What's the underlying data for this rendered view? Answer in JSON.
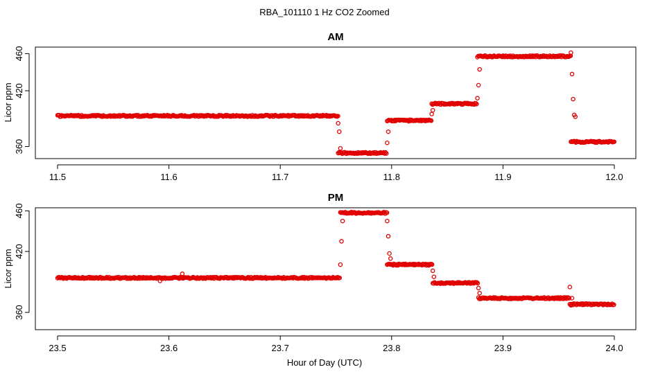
{
  "page": {
    "title": "RBA_101110  1 Hz CO2 Zoomed",
    "xlabel": "Hour of Day (UTC)",
    "ylabel": "Licor ppm"
  },
  "chart_data": [
    {
      "type": "scatter",
      "title": "AM",
      "xlabel": "Hour of Day (UTC)",
      "ylabel": "Licor ppm",
      "xlim": [
        11.5,
        12.0
      ],
      "ylim": [
        347,
        467
      ],
      "xticks": [
        "11.5",
        "11.6",
        "11.7",
        "11.8",
        "11.9",
        "12.0"
      ],
      "xtick_values": [
        11.5,
        11.6,
        11.7,
        11.8,
        11.9,
        12.0
      ],
      "yticks": [
        "360",
        "420",
        "460"
      ],
      "ytick_values": [
        360,
        420,
        460
      ],
      "grid": false,
      "color": "#e00000",
      "segments": [
        {
          "x": [
            11.5,
            11.752
          ],
          "y": 393
        },
        {
          "x": [
            11.752,
            11.796
          ],
          "y": 353
        },
        {
          "x": [
            11.796,
            11.836
          ],
          "y": 388
        },
        {
          "x": [
            11.836,
            11.877
          ],
          "y": 406
        },
        {
          "x": [
            11.877,
            11.961
          ],
          "y": 457
        },
        {
          "x": [
            11.961,
            12.0
          ],
          "y": 365
        }
      ],
      "transitions": [
        {
          "x": 11.752,
          "y": 385
        },
        {
          "x": 11.753,
          "y": 376
        },
        {
          "x": 11.754,
          "y": 358
        },
        {
          "x": 11.796,
          "y": 364
        },
        {
          "x": 11.797,
          "y": 376
        },
        {
          "x": 11.836,
          "y": 395
        },
        {
          "x": 11.837,
          "y": 399
        },
        {
          "x": 11.877,
          "y": 412
        },
        {
          "x": 11.878,
          "y": 426
        },
        {
          "x": 11.879,
          "y": 443
        },
        {
          "x": 11.961,
          "y": 461
        },
        {
          "x": 11.962,
          "y": 438
        },
        {
          "x": 11.963,
          "y": 411
        },
        {
          "x": 11.964,
          "y": 394
        },
        {
          "x": 11.965,
          "y": 392
        }
      ]
    },
    {
      "type": "scatter",
      "title": "PM",
      "xlabel": "Hour of Day (UTC)",
      "ylabel": "Licor ppm",
      "xlim": [
        23.5,
        24.0
      ],
      "ylim": [
        343,
        463
      ],
      "xticks": [
        "23.5",
        "23.6",
        "23.7",
        "23.8",
        "23.9",
        "24.0"
      ],
      "xtick_values": [
        23.5,
        23.6,
        23.7,
        23.8,
        23.9,
        24.0
      ],
      "yticks": [
        "360",
        "420",
        "460"
      ],
      "ytick_values": [
        360,
        420,
        460
      ],
      "grid": false,
      "color": "#e00000",
      "segments": [
        {
          "x": [
            23.5,
            23.754
          ],
          "y": 394
        },
        {
          "x": [
            23.754,
            23.796
          ],
          "y": 458
        },
        {
          "x": [
            23.796,
            23.837
          ],
          "y": 407
        },
        {
          "x": [
            23.837,
            23.878
          ],
          "y": 389
        },
        {
          "x": [
            23.878,
            23.96
          ],
          "y": 374
        },
        {
          "x": [
            23.96,
            24.0
          ],
          "y": 368
        }
      ],
      "transitions": [
        {
          "x": 23.754,
          "y": 407
        },
        {
          "x": 23.755,
          "y": 430
        },
        {
          "x": 23.756,
          "y": 450
        },
        {
          "x": 23.796,
          "y": 450
        },
        {
          "x": 23.797,
          "y": 435
        },
        {
          "x": 23.798,
          "y": 418
        },
        {
          "x": 23.799,
          "y": 413
        },
        {
          "x": 23.837,
          "y": 401
        },
        {
          "x": 23.838,
          "y": 395
        },
        {
          "x": 23.878,
          "y": 384
        },
        {
          "x": 23.879,
          "y": 379
        },
        {
          "x": 23.96,
          "y": 385
        },
        {
          "x": 23.961,
          "y": 367
        },
        {
          "x": 23.962,
          "y": 374
        },
        {
          "x": 23.592,
          "y": 391
        },
        {
          "x": 23.612,
          "y": 398
        }
      ]
    }
  ]
}
